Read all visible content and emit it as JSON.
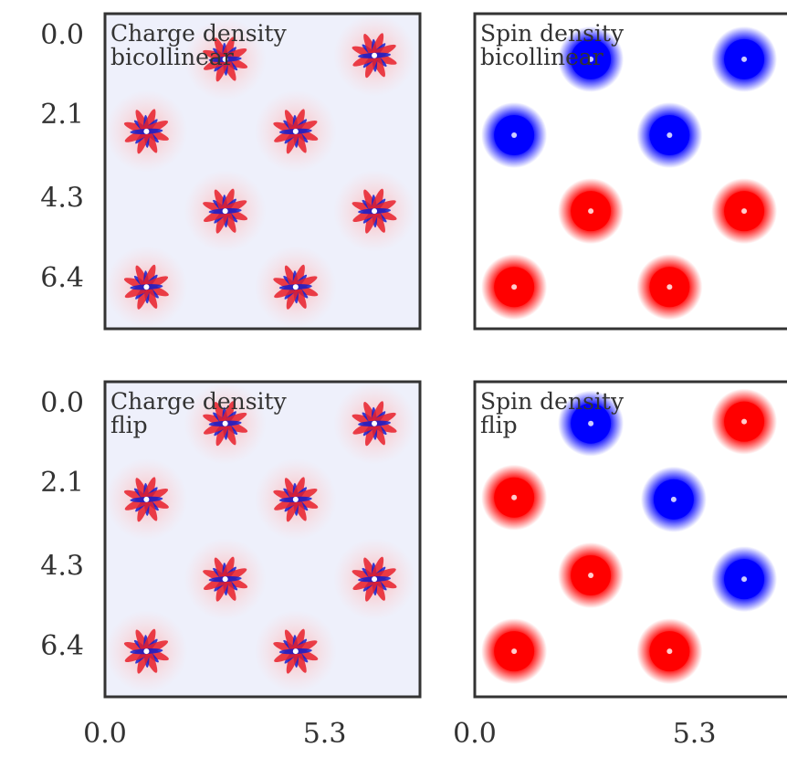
{
  "chart_data": {
    "type": "density-map",
    "xlim": [
      0,
      7.6
    ],
    "ylim": [
      -0.6,
      7.7
    ],
    "xticks": [
      {
        "value": 0,
        "label": "0.0"
      },
      5.3
    ],
    "yticks": [
      {
        "value": 0,
        "label": "0.0"
      },
      2.1,
      4.3,
      6.4
    ],
    "panels": [
      {
        "title": [
          "Charge density",
          "bicollinear"
        ],
        "kind": "charge",
        "spots": [
          {
            "x": 2.9,
            "y": 0.6
          },
          {
            "x": 6.5,
            "y": 0.5
          },
          {
            "x": 1.0,
            "y": 2.5
          },
          {
            "x": 4.6,
            "y": 2.5
          },
          {
            "x": 2.9,
            "y": 4.6
          },
          {
            "x": 6.5,
            "y": 4.6
          },
          {
            "x": 1.0,
            "y": 6.6
          },
          {
            "x": 4.6,
            "y": 6.6
          }
        ]
      },
      {
        "title": [
          "Spin density",
          "bicollinear"
        ],
        "kind": "spin",
        "spots": [
          {
            "x": 2.8,
            "y": 0.6,
            "color": "#0000ff"
          },
          {
            "x": 6.5,
            "y": 0.6,
            "color": "#0000ff"
          },
          {
            "x": 0.95,
            "y": 2.6,
            "color": "#0000ff"
          },
          {
            "x": 4.7,
            "y": 2.6,
            "color": "#0000ff"
          },
          {
            "x": 2.8,
            "y": 4.6,
            "color": "#ff0000"
          },
          {
            "x": 6.5,
            "y": 4.6,
            "color": "#ff0000"
          },
          {
            "x": 0.95,
            "y": 6.6,
            "color": "#ff0000"
          },
          {
            "x": 4.7,
            "y": 6.6,
            "color": "#ff0000"
          }
        ]
      },
      {
        "title": [
          "Charge density",
          "flip"
        ],
        "kind": "charge",
        "spots": [
          {
            "x": 2.9,
            "y": 0.5
          },
          {
            "x": 6.5,
            "y": 0.5
          },
          {
            "x": 1.0,
            "y": 2.5
          },
          {
            "x": 4.6,
            "y": 2.5
          },
          {
            "x": 2.9,
            "y": 4.6
          },
          {
            "x": 6.5,
            "y": 4.6
          },
          {
            "x": 1.0,
            "y": 6.5
          },
          {
            "x": 4.6,
            "y": 6.5
          }
        ]
      },
      {
        "title": [
          "Spin density",
          "flip"
        ],
        "kind": "spin",
        "spots": [
          {
            "x": 2.8,
            "y": 0.5,
            "color": "#0000ff"
          },
          {
            "x": 4.8,
            "y": 2.5,
            "color": "#0000ff"
          },
          {
            "x": 6.5,
            "y": 4.6,
            "color": "#0000ff"
          },
          {
            "x": 6.5,
            "y": 0.45,
            "color": "#ff0000"
          },
          {
            "x": 0.95,
            "y": 2.45,
            "color": "#ff0000"
          },
          {
            "x": 2.8,
            "y": 4.5,
            "color": "#ff0000"
          },
          {
            "x": 0.95,
            "y": 6.5,
            "color": "#ff0000"
          },
          {
            "x": 4.7,
            "y": 6.5,
            "color": "#ff0000"
          }
        ]
      }
    ]
  }
}
